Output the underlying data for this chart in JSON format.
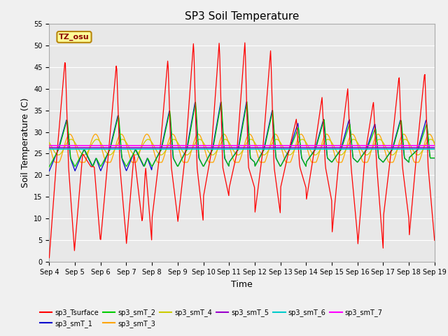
{
  "title": "SP3 Soil Temperature",
  "xlabel": "Time",
  "ylabel": "Soil Temperature (C)",
  "ylim": [
    0,
    55
  ],
  "yticks": [
    0,
    5,
    10,
    15,
    20,
    25,
    30,
    35,
    40,
    45,
    50,
    55
  ],
  "start_day": 4,
  "end_day": 19,
  "annotation_text": "TZ_osu",
  "annotation_color": "#8B0000",
  "annotation_bg": "#FFFF99",
  "annotation_border": "#B8860B",
  "series_colors": {
    "sp3_Tsurface": "#FF0000",
    "sp3_smT_1": "#0000CD",
    "sp3_smT_2": "#00CC00",
    "sp3_smT_3": "#FFA500",
    "sp3_smT_4": "#CCCC00",
    "sp3_smT_5": "#9900CC",
    "sp3_smT_6": "#00CCCC",
    "sp3_smT_7": "#FF00FF"
  },
  "plot_bg": "#E8E8E8",
  "fig_bg": "#F0F0F0",
  "grid_color": "#FFFFFF",
  "title_fontsize": 11,
  "tick_fontsize": 7,
  "label_fontsize": 9
}
